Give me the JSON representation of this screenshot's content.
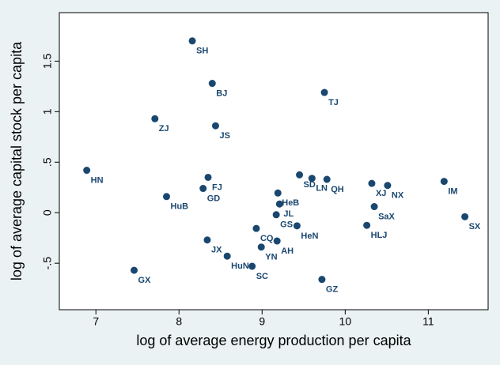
{
  "chart_data": {
    "type": "scatter",
    "xlabel": "log of average energy production per capita",
    "ylabel": "log of average capital stock per capita",
    "color": "#1a476f",
    "labels": [
      "SH",
      "BJ",
      "TJ",
      "ZJ",
      "JS",
      "HN",
      "FJ",
      "GD",
      "HuB",
      "SD",
      "LN",
      "QH",
      "HeB",
      "JL",
      "GS",
      "HeN",
      "XJ",
      "NX",
      "IM",
      "SaX",
      "HLJ",
      "SX",
      "CQ",
      "AH",
      "YN",
      "JX",
      "HuN",
      "SC",
      "GX",
      "GZ"
    ],
    "x": [
      8.16,
      8.4,
      9.75,
      7.71,
      8.44,
      6.89,
      8.35,
      8.29,
      7.85,
      9.45,
      9.6,
      9.78,
      9.19,
      9.21,
      9.17,
      9.42,
      10.32,
      10.51,
      11.19,
      10.35,
      10.26,
      11.44,
      8.93,
      9.18,
      8.99,
      8.34,
      8.58,
      8.88,
      7.46,
      9.72
    ],
    "y": [
      1.7,
      1.28,
      1.19,
      0.93,
      0.86,
      0.42,
      0.35,
      0.24,
      0.16,
      0.375,
      0.34,
      0.33,
      0.195,
      0.086,
      -0.02,
      -0.13,
      0.29,
      0.27,
      0.31,
      0.06,
      -0.125,
      -0.04,
      -0.156,
      -0.28,
      -0.34,
      -0.27,
      -0.43,
      -0.53,
      -0.57,
      -0.66
    ],
    "xlim": [
      6.56,
      11.72
    ],
    "xticks": [
      7,
      8,
      9,
      10,
      11
    ],
    "ylim": [
      -0.96,
      1.98
    ],
    "yticks": [
      {
        "value": -0.5,
        "label": "-.5"
      },
      0,
      {
        "value": 0.5,
        "label": ".5"
      },
      1,
      {
        "value": 1.5,
        "label": "1.5"
      }
    ]
  }
}
